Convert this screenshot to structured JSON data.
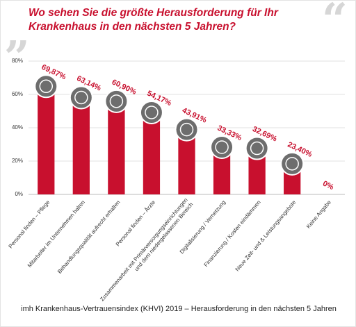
{
  "chart_data": {
    "type": "bar",
    "title": "Wo sehen Sie die größte Herausforderung für Ihr Krankenhaus in den nächsten 5 Jahren?",
    "caption": "imh Krankenhaus-Vertrauensindex (KHVI) 2019 – Herausforderung in den nächsten 5 Jahren",
    "categories": [
      "Personal finden – Pflege",
      "Mitarbeiter im Unternehmen halten",
      "Behandlungsqualität aufrecht erhalten",
      "Personal finden – Ärzte",
      "Zusammenarbeit mit Primärversorgungseinrichtungen\nund dem niedergelassenen Bereich",
      "Digitalisierung / Vernetzung",
      "Finanzierung / Kosten eindämmen",
      "Neue Zeit- und & Leistungsangebote",
      "Keine Angabe"
    ],
    "values": [
      69.87,
      63.14,
      60.9,
      54.17,
      43.91,
      33.33,
      32.69,
      23.4,
      0
    ],
    "value_labels": [
      "69,87%",
      "63,14%",
      "60,90%",
      "54,17%",
      "43,91%",
      "33,33%",
      "32,69%",
      "23,40%",
      "0%"
    ],
    "color": "#c8102e",
    "ylim": [
      0,
      80
    ],
    "yticks": [
      {
        "value": 0,
        "label": "0%"
      },
      {
        "value": 20,
        "label": "20%"
      },
      {
        "value": 40,
        "label": "40%"
      },
      {
        "value": 60,
        "label": "60%"
      },
      {
        "value": 80,
        "label": "80%"
      }
    ],
    "grid": true
  }
}
